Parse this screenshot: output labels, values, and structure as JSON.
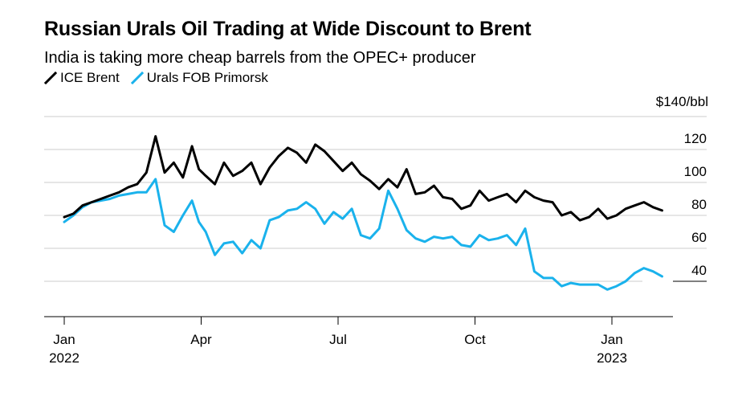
{
  "title": "Russian Urals Oil Trading at Wide Discount to Brent",
  "subtitle": "India is taking more cheap barrels from the OPEC+ producer",
  "colors": {
    "brent": "#000000",
    "urals": "#1ab2ec",
    "grid": "#cccccc"
  },
  "chart_data": {
    "type": "line",
    "title": "Russian Urals Oil Trading at Wide Discount to Brent",
    "subtitle": "India is taking more cheap barrels from the OPEC+ producer",
    "ylabel": "$140/bbl",
    "y_unit_label": "$140/bbl",
    "ylim": [
      20,
      140
    ],
    "y_ticks": [
      40,
      60,
      80,
      100,
      120,
      140
    ],
    "y_tick_labels": [
      "40",
      "60",
      "80",
      "100",
      "120"
    ],
    "x_tick_positions": [
      0,
      3,
      6,
      9,
      12
    ],
    "x_tick_labels": [
      [
        "Jan",
        "2022"
      ],
      [
        "Apr",
        ""
      ],
      [
        "Jul",
        ""
      ],
      [
        "Oct",
        ""
      ],
      [
        "Jan",
        "2023"
      ]
    ],
    "xlim": [
      0,
      13.3
    ],
    "series": [
      {
        "name": "ICE Brent",
        "color": "#000000",
        "x": [
          0,
          0.2,
          0.4,
          0.6,
          0.8,
          1.0,
          1.2,
          1.4,
          1.6,
          1.8,
          2.0,
          2.2,
          2.4,
          2.6,
          2.8,
          2.95,
          3.1,
          3.3,
          3.5,
          3.7,
          3.9,
          4.1,
          4.3,
          4.5,
          4.7,
          4.9,
          5.1,
          5.3,
          5.5,
          5.7,
          5.9,
          6.1,
          6.3,
          6.5,
          6.7,
          6.9,
          7.1,
          7.3,
          7.5,
          7.7,
          7.9,
          8.1,
          8.3,
          8.5,
          8.7,
          8.9,
          9.1,
          9.3,
          9.5,
          9.7,
          9.9,
          10.1,
          10.3,
          10.5,
          10.7,
          10.9,
          11.1,
          11.3,
          11.5,
          11.7,
          11.9,
          12.1,
          12.3,
          12.5,
          12.7,
          12.9,
          13.1
        ],
        "values": [
          79,
          81,
          86,
          88,
          90,
          92,
          94,
          97,
          99,
          106,
          128,
          106,
          112,
          103,
          122,
          108,
          104,
          99,
          112,
          104,
          107,
          112,
          99,
          109,
          116,
          121,
          118,
          112,
          123,
          119,
          113,
          107,
          112,
          105,
          101,
          96,
          102,
          97,
          108,
          93,
          94,
          98,
          91,
          90,
          84,
          86,
          95,
          89,
          91,
          93,
          88,
          95,
          91,
          89,
          88,
          80,
          82,
          77,
          79,
          84,
          78,
          80,
          84,
          86,
          88,
          85,
          83
        ]
      },
      {
        "name": "Urals FOB Primorsk",
        "color": "#1ab2ec",
        "x": [
          0,
          0.2,
          0.4,
          0.6,
          0.8,
          1.0,
          1.2,
          1.4,
          1.6,
          1.8,
          2.0,
          2.2,
          2.4,
          2.6,
          2.8,
          2.95,
          3.1,
          3.3,
          3.5,
          3.7,
          3.9,
          4.1,
          4.3,
          4.5,
          4.7,
          4.9,
          5.1,
          5.3,
          5.5,
          5.7,
          5.9,
          6.1,
          6.3,
          6.5,
          6.7,
          6.9,
          7.1,
          7.3,
          7.5,
          7.7,
          7.9,
          8.1,
          8.3,
          8.5,
          8.7,
          8.9,
          9.1,
          9.3,
          9.5,
          9.7,
          9.9,
          10.1,
          10.3,
          10.5,
          10.7,
          10.9,
          11.1,
          11.3,
          11.5,
          11.7,
          11.9,
          12.1,
          12.3,
          12.5,
          12.7,
          12.9,
          13.1
        ],
        "values": [
          76,
          80,
          85,
          88,
          89,
          90,
          92,
          93,
          94,
          94,
          102,
          74,
          70,
          80,
          89,
          76,
          70,
          56,
          63,
          64,
          57,
          65,
          60,
          77,
          79,
          83,
          84,
          88,
          84,
          75,
          82,
          78,
          84,
          68,
          66,
          72,
          95,
          84,
          71,
          66,
          64,
          67,
          66,
          67,
          62,
          61,
          68,
          65,
          66,
          68,
          62,
          72,
          46,
          42,
          42,
          37,
          39,
          38,
          38,
          38,
          35,
          37,
          40,
          45,
          48,
          46,
          43
        ]
      }
    ]
  }
}
